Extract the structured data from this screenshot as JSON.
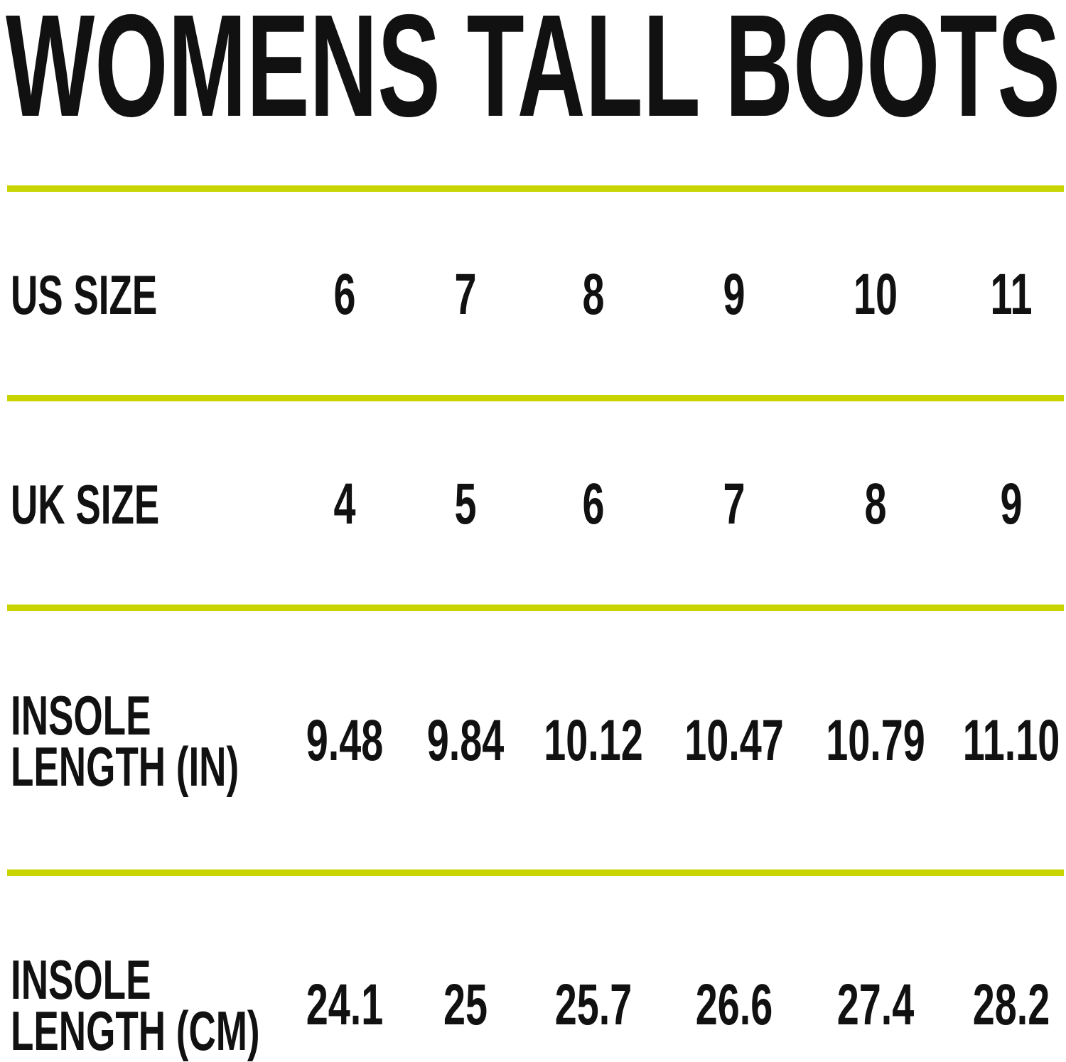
{
  "title": "WOMENS TALL BOOTS",
  "accent_color": "#c8d400",
  "rows": [
    {
      "label": [
        "US SIZE"
      ],
      "values": [
        "6",
        "7",
        "8",
        "9",
        "10",
        "11"
      ]
    },
    {
      "label": [
        "UK SIZE"
      ],
      "values": [
        "4",
        "5",
        "6",
        "7",
        "8",
        "9"
      ]
    },
    {
      "label": [
        "INSOLE",
        "LENGTH (IN)"
      ],
      "values": [
        "9.48",
        "9.84",
        "10.12",
        "10.47",
        "10.79",
        "11.10"
      ]
    },
    {
      "label": [
        "INSOLE",
        "LENGTH (CM)"
      ],
      "values": [
        "24.1",
        "25",
        "25.7",
        "26.6",
        "27.4",
        "28.2"
      ]
    }
  ]
}
